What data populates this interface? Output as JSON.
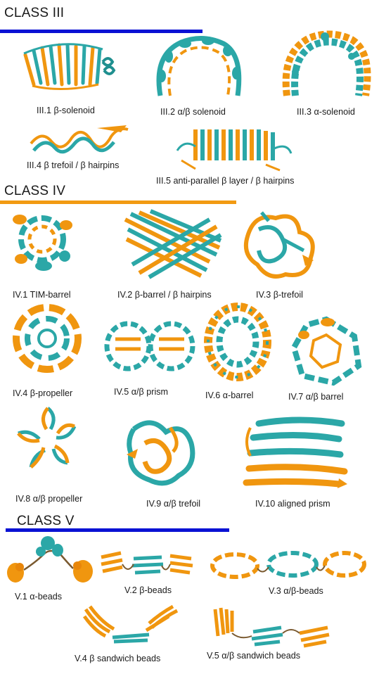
{
  "colors": {
    "teal": "#2ba7a7",
    "orange": "#f0960f",
    "blue": "#0a12d4",
    "bar_orange": "#f29a12"
  },
  "sections": [
    {
      "title": "CLASS III",
      "bar_color": "#0a12d4",
      "items": [
        {
          "label": "III.1 β-solenoid",
          "icon": "beta-solenoid"
        },
        {
          "label": "III.2 α/β solenoid",
          "icon": "alpha-beta-solenoid"
        },
        {
          "label": "III.3 α-solenoid",
          "icon": "alpha-solenoid"
        },
        {
          "label": "III.4  β trefoil / β hairpins",
          "icon": "beta-hairpins"
        },
        {
          "label": "III.5  anti-parallel β layer / β hairpins",
          "icon": "antiparallel-beta-layer"
        }
      ]
    },
    {
      "title": "CLASS IV",
      "bar_color": "#f29a12",
      "items": [
        {
          "label": "IV.1 TIM-barrel",
          "icon": "tim-barrel"
        },
        {
          "label": "IV.2 β-barrel / β hairpins",
          "icon": "beta-barrel"
        },
        {
          "label": "IV.3 β-trefoil",
          "icon": "beta-trefoil"
        },
        {
          "label": "IV.4 β-propeller",
          "icon": "beta-propeller"
        },
        {
          "label": "IV.5 α/β prism",
          "icon": "alpha-beta-prism"
        },
        {
          "label": "IV.6 α-barrel",
          "icon": "alpha-barrel"
        },
        {
          "label": "IV.7 α/β barrel",
          "icon": "alpha-beta-barrel"
        },
        {
          "label": "IV.8 α/β propeller",
          "icon": "alpha-beta-propeller"
        },
        {
          "label": "IV.9 α/β trefoil",
          "icon": "alpha-beta-trefoil"
        },
        {
          "label": "IV.10 aligned prism",
          "icon": "aligned-prism"
        }
      ]
    },
    {
      "title": "CLASS V",
      "bar_color": "#0a12d4",
      "items": [
        {
          "label": "V.1 α-beads",
          "icon": "alpha-beads"
        },
        {
          "label": "V.2 β-beads",
          "icon": "beta-beads"
        },
        {
          "label": "V.3 α/β-beads",
          "icon": "alpha-beta-beads"
        },
        {
          "label": "V.4 β sandwich beads",
          "icon": "beta-sandwich-beads"
        },
        {
          "label": "V.5 α/β sandwich beads",
          "icon": "alpha-beta-sandwich-beads"
        }
      ]
    }
  ]
}
